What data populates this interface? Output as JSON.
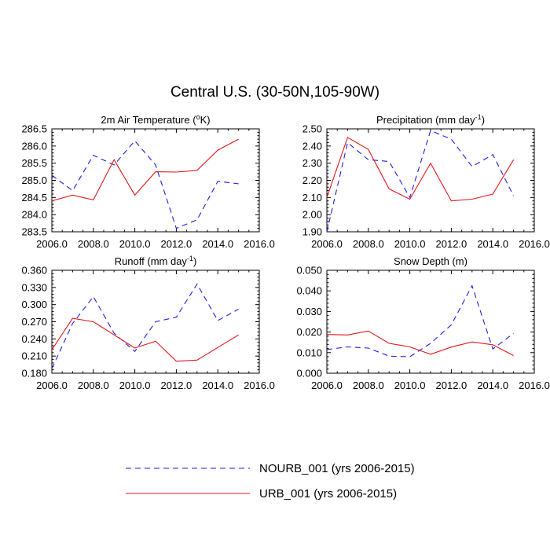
{
  "title": "Central U.S. (30-50N,105-90W)",
  "colors": {
    "nourb": "#1f1fe0",
    "urb": "#e0191c"
  },
  "legend": [
    {
      "name": "NOURB_001 (yrs 2006-2015)",
      "style": "dashed",
      "color": "#1f1fe0"
    },
    {
      "name": "URB_001 (yrs 2006-2015)",
      "style": "solid",
      "color": "#e0191c"
    }
  ],
  "chart_data": [
    {
      "type": "line",
      "title": "2m Air Temperature (°K)",
      "title_main": "2m Air Temperature (",
      "title_sup": "o",
      "title_post": "K)",
      "xlim": [
        2006,
        2016
      ],
      "xticks": [
        "2006.0",
        "2008.0",
        "2010.0",
        "2012.0",
        "2014.0",
        "2016.0"
      ],
      "ylim": [
        283.5,
        286.5
      ],
      "yticks": [
        "283.5",
        "284.0",
        "284.5",
        "285.0",
        "285.5",
        "286.0",
        "286.5"
      ],
      "x": [
        2006,
        2007,
        2008,
        2009,
        2010,
        2011,
        2012,
        2013,
        2014,
        2015
      ],
      "series": [
        {
          "name": "NOURB_001 (yrs 2006-2015)",
          "values": [
            285.15,
            284.7,
            285.73,
            285.45,
            286.15,
            285.45,
            283.6,
            283.85,
            284.97,
            284.9
          ]
        },
        {
          "name": "URB_001 (yrs 2006-2015)",
          "values": [
            284.4,
            284.57,
            284.43,
            285.6,
            284.57,
            285.25,
            285.24,
            285.29,
            285.88,
            286.2
          ]
        }
      ]
    },
    {
      "type": "line",
      "title": "Precipitation (mm day-1)",
      "title_main": "Precipitation (mm day",
      "title_sup": "-1",
      "title_post": ")",
      "xlim": [
        2006,
        2016
      ],
      "xticks": [
        "2006.0",
        "2008.0",
        "2010.0",
        "2012.0",
        "2014.0",
        "2016.0"
      ],
      "ylim": [
        1.9,
        2.5
      ],
      "yticks": [
        "1.90",
        "2.00",
        "2.10",
        "2.20",
        "2.30",
        "2.40",
        "2.50"
      ],
      "x": [
        2006,
        2007,
        2008,
        2009,
        2010,
        2011,
        2012,
        2013,
        2014,
        2015
      ],
      "series": [
        {
          "name": "NOURB_001 (yrs 2006-2015)",
          "values": [
            1.9,
            2.42,
            2.32,
            2.31,
            2.1,
            2.49,
            2.44,
            2.28,
            2.35,
            2.11
          ]
        },
        {
          "name": "URB_001 (yrs 2006-2015)",
          "values": [
            2.1,
            2.45,
            2.38,
            2.15,
            2.09,
            2.3,
            2.08,
            2.09,
            2.12,
            2.32
          ]
        }
      ]
    },
    {
      "type": "line",
      "title": "Runoff (mm day-1)",
      "title_main": "Runoff (mm day",
      "title_sup": "-1",
      "title_post": ")",
      "xlim": [
        2006,
        2016
      ],
      "xticks": [
        "2006.0",
        "2008.0",
        "2010.0",
        "2012.0",
        "2014.0",
        "2016.0"
      ],
      "ylim": [
        0.18,
        0.36
      ],
      "yticks": [
        "0.180",
        "0.210",
        "0.240",
        "0.270",
        "0.300",
        "0.330",
        "0.360"
      ],
      "x": [
        2006,
        2007,
        2008,
        2009,
        2010,
        2011,
        2012,
        2013,
        2014,
        2015
      ],
      "series": [
        {
          "name": "NOURB_001 (yrs 2006-2015)",
          "values": [
            0.188,
            0.267,
            0.314,
            0.25,
            0.218,
            0.27,
            0.278,
            0.336,
            0.272,
            0.292
          ]
        },
        {
          "name": "URB_001 (yrs 2006-2015)",
          "values": [
            0.221,
            0.276,
            0.27,
            0.247,
            0.224,
            0.236,
            0.201,
            0.203,
            0.225,
            0.247
          ]
        }
      ]
    },
    {
      "type": "line",
      "title": "Snow Depth (m)",
      "title_main": "Snow Depth (m)",
      "title_sup": "",
      "title_post": "",
      "xlim": [
        2006,
        2016
      ],
      "xticks": [
        "2006.0",
        "2008.0",
        "2010.0",
        "2012.0",
        "2014.0",
        "2016.0"
      ],
      "ylim": [
        0,
        0.05
      ],
      "yticks": [
        "0.000",
        "0.010",
        "0.020",
        "0.030",
        "0.040",
        "0.050"
      ],
      "x": [
        2006,
        2007,
        2008,
        2009,
        2010,
        2011,
        2012,
        2013,
        2014,
        2015
      ],
      "series": [
        {
          "name": "NOURB_001 (yrs 2006-2015)",
          "values": [
            0.0115,
            0.0128,
            0.0122,
            0.0083,
            0.008,
            0.0145,
            0.0235,
            0.0425,
            0.0118,
            0.0193
          ]
        },
        {
          "name": "URB_001 (yrs 2006-2015)",
          "values": [
            0.0188,
            0.0186,
            0.0205,
            0.0145,
            0.0128,
            0.0092,
            0.0127,
            0.0152,
            0.0138,
            0.0086
          ]
        }
      ]
    }
  ]
}
